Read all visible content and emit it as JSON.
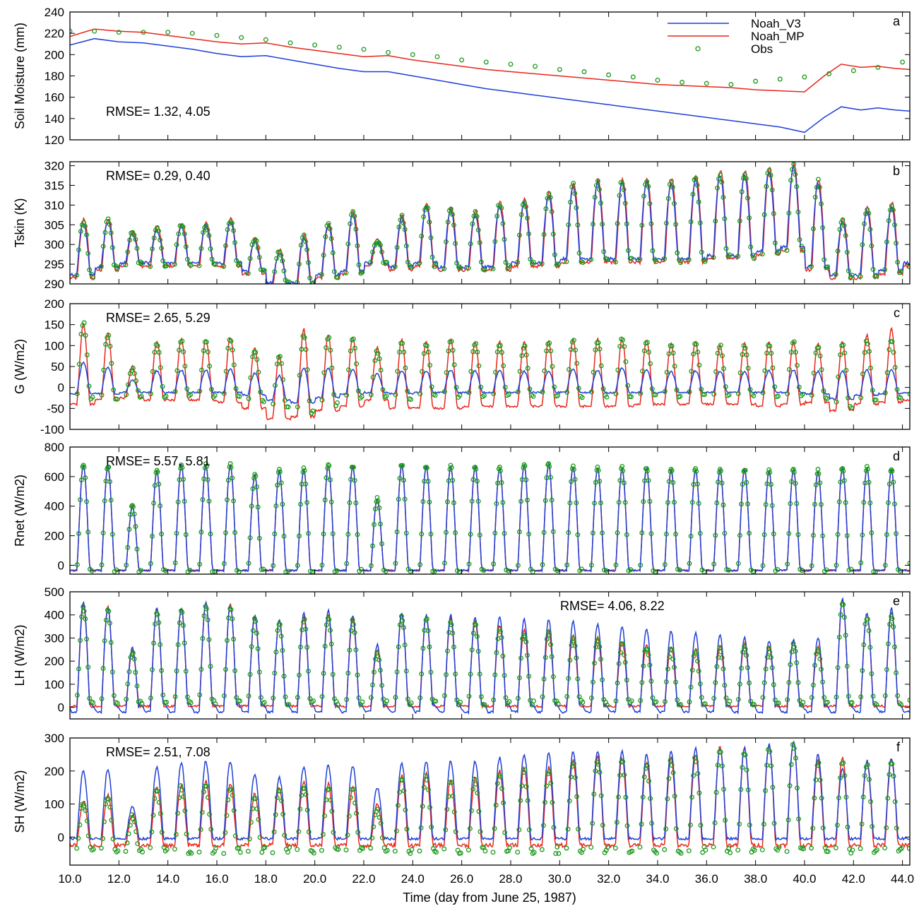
{
  "chart_data": {
    "type": "line",
    "xlabel": "Time (day from June 25, 1987)",
    "xlim": [
      10.0,
      44.3
    ],
    "xticks": [
      "10.0",
      "12.0",
      "14.0",
      "16.0",
      "18.0",
      "20.0",
      "22.0",
      "24.0",
      "26.0",
      "28.0",
      "30.0",
      "32.0",
      "34.0",
      "36.0",
      "38.0",
      "40.0",
      "42.0",
      "44.0"
    ],
    "legend": {
      "position": "top-right",
      "entries": [
        {
          "name": "Noah_V3",
          "color": "#1f3fd6",
          "style": "line"
        },
        {
          "name": "Noah_MP",
          "color": "#e8261a",
          "style": "line"
        },
        {
          "name": "Obs",
          "color": "#1a9a1a",
          "style": "open-circle"
        }
      ]
    },
    "panels": [
      {
        "letter": "a",
        "ylabel": "Soil Moisture (mm)",
        "ylim": [
          120,
          240
        ],
        "yticks": [
          "120",
          "140",
          "160",
          "180",
          "200",
          "220",
          "240"
        ],
        "rmse": "RMSE=  1.32,  4.05",
        "kind": "soil",
        "series": {
          "Noah_V3": {
            "x": [
              10,
              11,
              12,
              13,
              14,
              15,
              16,
              17,
              18,
              19,
              20,
              21,
              22,
              23,
              24,
              25,
              26,
              27,
              28,
              29,
              30,
              31,
              32,
              33,
              34,
              35,
              36,
              37,
              38,
              39,
              40,
              40.8,
              41.5,
              42.3,
              43,
              43.7,
              44.3
            ],
            "y": [
              209,
              215,
              212,
              211,
              208,
              205,
              201,
              198,
              199,
              195,
              191,
              187,
              184,
              184,
              180,
              176,
              172,
              168,
              165,
              162,
              159,
              156,
              153,
              150,
              147,
              144,
              141,
              138,
              135,
              132,
              127,
              141,
              151,
              148,
              150,
              148,
              147
            ]
          },
          "Noah_MP": {
            "x": [
              10,
              11,
              12,
              13,
              14,
              15,
              16,
              17,
              18,
              19,
              20,
              21,
              22,
              23,
              24,
              25,
              26,
              27,
              28,
              29,
              30,
              31,
              32,
              33,
              34,
              35,
              36,
              37,
              38,
              39,
              40,
              40.8,
              41.5,
              42.3,
              43,
              43.7,
              44.3
            ],
            "y": [
              217,
              224,
              222,
              221,
              218,
              215,
              212,
              210,
              211,
              207,
              204,
              201,
              198,
              199,
              195,
              192,
              189,
              186,
              184,
              182,
              180,
              178,
              176,
              174,
              172,
              171,
              170,
              169,
              167,
              166,
              165,
              180,
              191,
              188,
              189,
              187,
              186
            ]
          },
          "Obs": {
            "x": [
              10,
              11,
              12,
              13,
              14,
              15,
              16,
              17,
              18,
              19,
              20,
              21,
              22,
              23,
              24,
              25,
              26,
              27,
              28,
              29,
              30,
              31,
              32,
              33,
              34,
              35,
              36,
              37,
              38,
              39,
              40,
              41,
              42,
              43,
              44
            ],
            "y": [
              222,
              222,
              221,
              221,
              221,
              220,
              218,
              216,
              214,
              211,
              209,
              207,
              205,
              202,
              200,
              198,
              195,
              193,
              191,
              189,
              186,
              184,
              181,
              179,
              176,
              174,
              173,
              172,
              175,
              177,
              179,
              182,
              185,
              188,
              193
            ]
          }
        }
      },
      {
        "letter": "b",
        "ylabel": "Tskin (K)",
        "ylim": [
          290,
          321
        ],
        "yticks": [
          "290",
          "295",
          "300",
          "305",
          "310",
          "315",
          "320"
        ],
        "rmse": "RMSE=  0.29,  0.40",
        "kind": "tskin",
        "series": {
          "Obs": {
            "daily_max": [
              306,
              306,
              303,
              304,
              305,
              305,
              306,
              301,
              298,
              302,
              305,
              308,
              301,
              307,
              310,
              309,
              308,
              310,
              311,
              313,
              315,
              316,
              316,
              316,
              316,
              317,
              318,
              318,
              319,
              320,
              316,
              306,
              309,
              310,
              310
            ],
            "daily_min": [
              292,
              294,
              295,
              295,
              295,
              295,
              295,
              293,
              290,
              290,
              292,
              293,
              295,
              294,
              295,
              294,
              294,
              294,
              295,
              295,
              296,
              296,
              296,
              296,
              296,
              296,
              297,
              297,
              298,
              299,
              294,
              292,
              292,
              293,
              295
            ]
          }
        }
      },
      {
        "letter": "c",
        "ylabel": "G (W/m2)",
        "ylim": [
          -100,
          200
        ],
        "yticks": [
          "-100",
          "-50",
          "0",
          "50",
          "100",
          "150",
          "200"
        ],
        "rmse": "RMSE=  2.65,  5.29",
        "kind": "ground",
        "series": {
          "Noah_MP": {
            "daily_max": [
              150,
              130,
              50,
              110,
              115,
              115,
              120,
              95,
              75,
              140,
              125,
              120,
              95,
              115,
              110,
              115,
              110,
              110,
              110,
              110,
              115,
              115,
              115,
              115,
              105,
              110,
              100,
              105,
              110,
              110,
              105,
              110,
              125,
              140,
              125
            ],
            "daily_min": [
              -40,
              -30,
              -25,
              -30,
              -30,
              -30,
              -35,
              -50,
              -75,
              -70,
              -55,
              -45,
              -30,
              -50,
              -50,
              -50,
              -45,
              -45,
              -45,
              -45,
              -45,
              -45,
              -45,
              -40,
              -40,
              -40,
              -40,
              -40,
              -45,
              -40,
              -35,
              -55,
              -40,
              -35,
              -30
            ]
          },
          "Obs": {
            "daily_max": [
              155,
              125,
              45,
              105,
              110,
              110,
              115,
              90,
              75,
              125,
              120,
              115,
              85,
              105,
              105,
              110,
              105,
              105,
              100,
              105,
              115,
              110,
              120,
              110,
              100,
              105,
              100,
              100,
              105,
              110,
              100,
              105,
              110,
              110,
              95
            ],
            "daily_min": [
              -25,
              -25,
              -20,
              -20,
              -20,
              -20,
              -20,
              -30,
              -50,
              -60,
              -40,
              -25,
              -20,
              -25,
              -20,
              -20,
              -20,
              -20,
              -20,
              -20,
              -20,
              -20,
              -20,
              -20,
              -20,
              -20,
              -20,
              -20,
              -20,
              -20,
              -25,
              -45,
              -30,
              -25,
              -20
            ]
          }
        }
      },
      {
        "letter": "d",
        "ylabel": "Rnet (W/m2)",
        "ylim": [
          -60,
          800
        ],
        "yticks": [
          "0",
          "200",
          "400",
          "600",
          "800"
        ],
        "rmse": "RMSE=  5.57,  5.81",
        "kind": "rnet",
        "series": {
          "Obs": {
            "daily_max": [
              680,
              670,
              400,
              640,
              680,
              680,
              680,
              610,
              640,
              650,
              680,
              670,
              450,
              680,
              670,
              670,
              670,
              660,
              680,
              690,
              670,
              660,
              660,
              660,
              650,
              650,
              650,
              650,
              640,
              650,
              640,
              660,
              660,
              650,
              630
            ]
          }
        }
      },
      {
        "letter": "e",
        "ylabel": "LH (W/m2)",
        "ylim": [
          -50,
          500
        ],
        "yticks": [
          "0",
          "100",
          "200",
          "300",
          "400",
          "500"
        ],
        "rmse": "RMSE=  4.06,  8.22",
        "kind": "lh",
        "series": {
          "Noah_V3": {
            "daily_max": [
              460,
              430,
              260,
              430,
              430,
              450,
              440,
              400,
              380,
              410,
              420,
              400,
              270,
              410,
              400,
              400,
              390,
              390,
              380,
              380,
              370,
              360,
              350,
              340,
              330,
              320,
              310,
              300,
              290,
              290,
              300,
              470,
              410,
              430,
              390
            ]
          },
          "Obs": {
            "daily_max": [
              430,
              420,
              230,
              410,
              410,
              440,
              430,
              380,
              360,
              380,
              390,
              370,
              230,
              390,
              380,
              370,
              360,
              340,
              320,
              320,
              300,
              290,
              270,
              260,
              250,
              240,
              250,
              260,
              250,
              270,
              250,
              450,
              390,
              400,
              360
            ]
          }
        }
      },
      {
        "letter": "f",
        "ylabel": "SH (W/m2)",
        "ylim": [
          -85,
          300
        ],
        "yticks": [
          "0",
          "100",
          "200",
          "300"
        ],
        "rmse": "RMSE=  2.51,  7.08",
        "kind": "sh",
        "series": {
          "Noah_V3": {
            "daily_max": [
              200,
              205,
              90,
              210,
              225,
              230,
              230,
              190,
              180,
              210,
              220,
              215,
              150,
              225,
              230,
              230,
              230,
              240,
              250,
              255,
              260,
              260,
              260,
              250,
              260,
              270,
              270,
              270,
              280,
              290,
              250,
              210,
              230,
              240,
              240
            ]
          },
          "Obs": {
            "daily_max": [
              100,
              115,
              60,
              140,
              150,
              160,
              150,
              120,
              140,
              160,
              150,
              140,
              90,
              175,
              180,
              160,
              170,
              190,
              200,
              200,
              220,
              235,
              230,
              220,
              230,
              240,
              265,
              260,
              270,
              280,
              220,
              230,
              220,
              225,
              190
            ]
          }
        }
      }
    ]
  }
}
